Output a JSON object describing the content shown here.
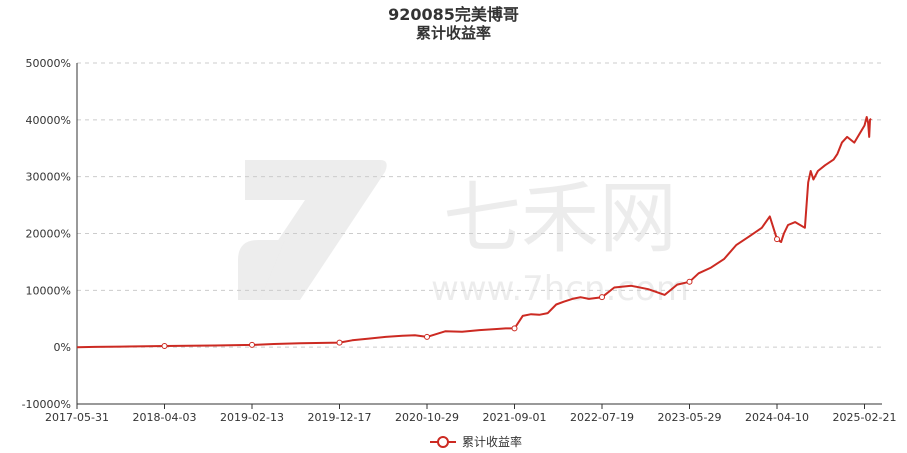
{
  "chart_data": {
    "type": "line",
    "title": "920085完美博哥",
    "subtitle": "累计收益率",
    "ylim": [
      -10000,
      50000
    ],
    "yticks": [
      -10000,
      0,
      10000,
      20000,
      30000,
      40000,
      50000
    ],
    "ytick_labels": [
      "-10000%",
      "0%",
      "10000%",
      "20000%",
      "30000%",
      "40000%",
      "50000%"
    ],
    "xtick_labels": [
      "2017-05-31",
      "2018-04-03",
      "2019-02-13",
      "2019-12-17",
      "2020-10-29",
      "2021-09-01",
      "2022-07-19",
      "2023-05-29",
      "2024-04-10",
      "2025-02-21"
    ],
    "grid": true,
    "legend": "bottom-center",
    "colors": {
      "line": "#cc2a22",
      "grid": "#cccccc",
      "axis": "#333333"
    },
    "watermark": "七禾网 www.7hcn.com",
    "series": [
      {
        "name": "累计收益率",
        "x": [
          "2017-05-31",
          "2017-08-01",
          "2017-11-01",
          "2018-02-01",
          "2018-04-03",
          "2018-07-01",
          "2018-10-01",
          "2019-02-13",
          "2019-05-01",
          "2019-08-01",
          "2019-12-17",
          "2020-02-01",
          "2020-04-01",
          "2020-06-01",
          "2020-08-01",
          "2020-09-15",
          "2020-10-29",
          "2021-01-01",
          "2021-03-01",
          "2021-05-01",
          "2021-07-01",
          "2021-08-01",
          "2021-09-01",
          "2021-10-01",
          "2021-11-01",
          "2021-12-01",
          "2022-01-01",
          "2022-02-01",
          "2022-03-01",
          "2022-04-01",
          "2022-05-01",
          "2022-06-01",
          "2022-07-19",
          "2022-09-01",
          "2022-11-01",
          "2023-01-01",
          "2023-03-01",
          "2023-04-15",
          "2023-05-29",
          "2023-07-01",
          "2023-08-15",
          "2023-10-01",
          "2023-11-15",
          "2024-01-01",
          "2024-02-15",
          "2024-03-15",
          "2024-04-10",
          "2024-04-25",
          "2024-05-05",
          "2024-05-20",
          "2024-06-15",
          "2024-07-20",
          "2024-08-01",
          "2024-08-10",
          "2024-08-20",
          "2024-09-05",
          "2024-10-01",
          "2024-11-01",
          "2024-11-15",
          "2024-12-01",
          "2024-12-20",
          "2025-01-15",
          "2025-02-21",
          "2025-03-01",
          "2025-03-06",
          "2025-03-10",
          "2025-03-13",
          "2025-03-17"
        ],
        "values": [
          0,
          50,
          100,
          150,
          200,
          250,
          300,
          400,
          550,
          700,
          800,
          1200,
          1500,
          1800,
          2000,
          2100,
          1800,
          2800,
          2700,
          3000,
          3200,
          3300,
          3300,
          5500,
          5800,
          5700,
          6000,
          7500,
          8000,
          8500,
          8800,
          8500,
          8800,
          10500,
          10800,
          10200,
          9200,
          11000,
          11500,
          13000,
          14000,
          15500,
          18000,
          19500,
          21000,
          23000,
          19000,
          18500,
          20000,
          21500,
          22000,
          21000,
          29000,
          31000,
          29500,
          31000,
          32000,
          33000,
          34000,
          36000,
          37000,
          36000,
          39000,
          40500,
          39500,
          37000,
          40000,
          40200
        ]
      }
    ]
  }
}
